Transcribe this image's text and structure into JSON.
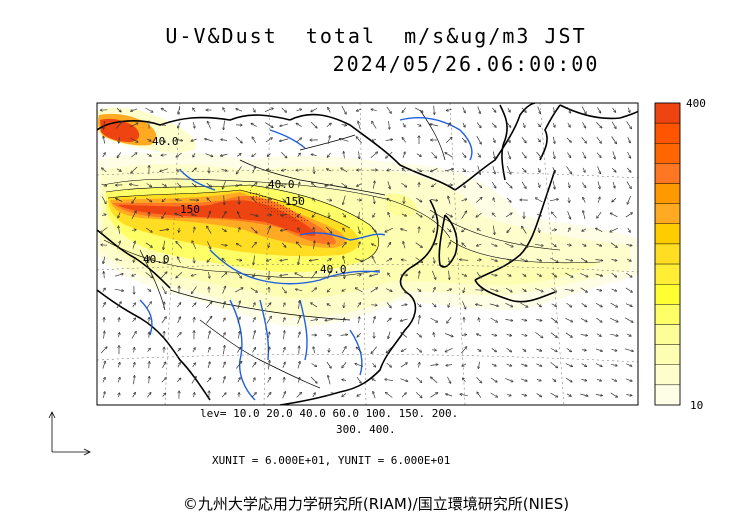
{
  "title": {
    "line1": "U-V&Dust  total  m/s&ug/m3 JST",
    "line2": "2024/05/26.06:00:00"
  },
  "legend": {
    "levels_line1": "lev= 10.0 20.0 40.0 60.0 100. 150. 200.",
    "levels_line2": "300. 400.",
    "colorbar_max": "400",
    "colorbar_min": "10",
    "colors": [
      "#fefee6",
      "#fefecc",
      "#fefeb3",
      "#fefe99",
      "#fefe66",
      "#fefe33",
      "#ffee33",
      "#ffdd22",
      "#ffcc00",
      "#ffaa22",
      "#ff9900",
      "#ff7722",
      "#ff6600",
      "#ff5500",
      "#ee4411"
    ]
  },
  "units": "XUNIT = 6.000E+01, YUNIT = 6.000E+01",
  "contour_labels": [
    "40.0",
    "150",
    "40.0",
    "40.0",
    "150",
    "40.0"
  ],
  "copyright": "©九州大学応用力学研究所(RIAM)/国立環境研究所(NIES)",
  "colors": {
    "coastline": "#000000",
    "rivers": "#1f5fe0",
    "dust_high": "#ee4411",
    "dust_low": "#fefecc"
  }
}
